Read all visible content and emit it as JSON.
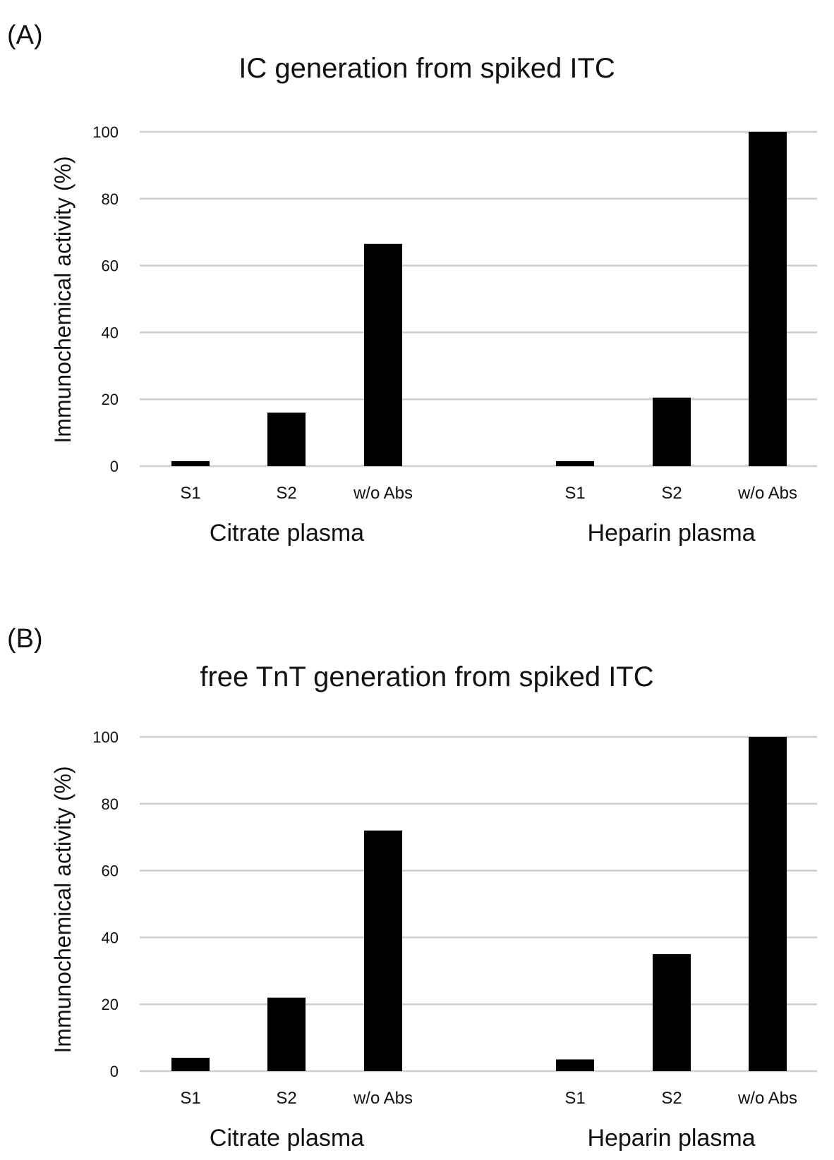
{
  "chart_data": [
    {
      "type": "bar",
      "panel_label": "(A)",
      "title": "IC generation from spiked ITC",
      "ylabel": "Immunochemical activity (%)",
      "ylim": [
        0,
        100
      ],
      "yticks": [
        "0",
        "20",
        "40",
        "60",
        "80",
        "100"
      ],
      "grid": true,
      "groups": [
        {
          "name": "Citrate plasma",
          "categories": [
            "S1",
            "S2",
            "w/o Abs"
          ],
          "values": [
            1.5,
            16,
            66.5
          ]
        },
        {
          "name": "Heparin plasma",
          "categories": [
            "S1",
            "S2",
            "w/o Abs"
          ],
          "values": [
            1.5,
            20.5,
            100
          ]
        }
      ],
      "colors": {
        "bar": "#000000",
        "grid": "#cfcfcf"
      }
    },
    {
      "type": "bar",
      "panel_label": "(B)",
      "title": "free TnT generation from spiked ITC",
      "ylabel": "Immunochemical activity (%)",
      "ylim": [
        0,
        100
      ],
      "yticks": [
        "0",
        "20",
        "40",
        "60",
        "80",
        "100"
      ],
      "grid": true,
      "groups": [
        {
          "name": "Citrate plasma",
          "categories": [
            "S1",
            "S2",
            "w/o Abs"
          ],
          "values": [
            4,
            22,
            72
          ]
        },
        {
          "name": "Heparin plasma",
          "categories": [
            "S1",
            "S2",
            "w/o Abs"
          ],
          "values": [
            3.5,
            35,
            100
          ]
        }
      ],
      "colors": {
        "bar": "#000000",
        "grid": "#cfcfcf"
      }
    }
  ]
}
